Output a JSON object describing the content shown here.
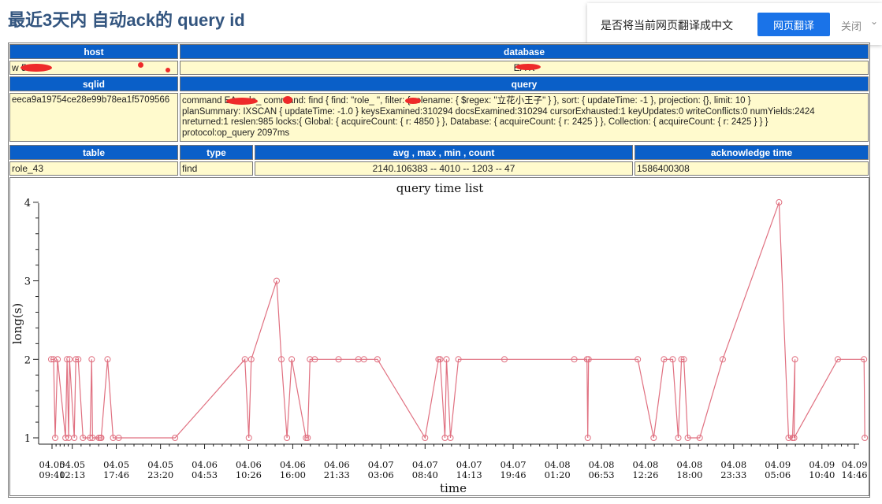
{
  "page": {
    "title": "最近3天内 自动ack的 query id"
  },
  "translate_bar": {
    "prompt": "是否将当前网页翻译成中文",
    "translate_button": "网页翻译",
    "close": "关闭",
    "chevron": "⌄"
  },
  "info_table": {
    "headers": {
      "host": "host",
      "database": "database",
      "sqlid": "sqlid",
      "query": "query",
      "table": "table",
      "type": "type",
      "stats": "avg , max , min , count",
      "ack_time": "acknowledge time"
    },
    "host": "w   5",
    "database": "EA   K",
    "sqlid": "eeca9a19754ce28e99b78ea1f5709566",
    "query_lines": [
      "command EA    .role_   command: find { find: \"role_   \", filter: { rolename: { $regex: \"立花小王子\" } }, sort: { updateTime: -1 }, projection: {}, limit: 10 }",
      "planSummary: IXSCAN { updateTime: -1.0 } keysExamined:310294 docsExamined:310294 cursorExhausted:1 keyUpdates:0 writeConflicts:0 numYields:2424",
      "nreturned:1 reslen:985 locks:{ Global: { acquireCount: { r: 4850 } }, Database: { acquireCount: { r: 2425 } }, Collection: { acquireCount: { r: 2425 } } }",
      "protocol:op_query 2097ms"
    ],
    "table": "role_43",
    "type": "find",
    "stats": "2140.106383 -- 4010 -- 1203 -- 47",
    "ack_time": "1586400308"
  },
  "chart_data": {
    "type": "line",
    "title": "query time list",
    "xlabel": "time",
    "ylabel": "long(s)",
    "ylim": [
      1,
      4
    ],
    "yticks": [
      1,
      2,
      3,
      4
    ],
    "xlim_hours": [
      0,
      101.5
    ],
    "xticks": [
      {
        "top": "04.05",
        "bottom": "09:40",
        "h": 0
      },
      {
        "top": "04.05",
        "bottom": "12:13",
        "h": 2.55
      },
      {
        "top": "04.05",
        "bottom": "17:46",
        "h": 8.1
      },
      {
        "top": "04.05",
        "bottom": "23:20",
        "h": 13.67
      },
      {
        "top": "04.06",
        "bottom": "04:53",
        "h": 19.22
      },
      {
        "top": "04.06",
        "bottom": "10:26",
        "h": 24.77
      },
      {
        "top": "04.06",
        "bottom": "16:00",
        "h": 30.33
      },
      {
        "top": "04.06",
        "bottom": "21:33",
        "h": 35.88
      },
      {
        "top": "04.07",
        "bottom": "03:06",
        "h": 41.43
      },
      {
        "top": "04.07",
        "bottom": "08:40",
        "h": 47.0
      },
      {
        "top": "04.07",
        "bottom": "14:13",
        "h": 52.55
      },
      {
        "top": "04.07",
        "bottom": "19:46",
        "h": 58.1
      },
      {
        "top": "04.08",
        "bottom": "01:20",
        "h": 63.67
      },
      {
        "top": "04.08",
        "bottom": "06:53",
        "h": 69.22
      },
      {
        "top": "04.08",
        "bottom": "12:26",
        "h": 74.77
      },
      {
        "top": "04.08",
        "bottom": "18:00",
        "h": 80.33
      },
      {
        "top": "04.08",
        "bottom": "23:33",
        "h": 85.88
      },
      {
        "top": "04.09",
        "bottom": "05:06",
        "h": 91.43
      },
      {
        "top": "04.09",
        "bottom": "10:40",
        "h": 97.0
      },
      {
        "top": "04.09",
        "bottom": "14:46",
        "h": 101.1
      }
    ],
    "series": [
      {
        "color": "#e07080",
        "points": [
          [
            -0.1,
            2
          ],
          [
            0.2,
            2
          ],
          [
            0.4,
            1
          ],
          [
            0.7,
            2
          ],
          [
            1.7,
            1
          ],
          [
            1.9,
            2
          ],
          [
            2.1,
            1
          ],
          [
            2.2,
            2
          ],
          [
            2.8,
            1
          ],
          [
            3.0,
            2
          ],
          [
            3.3,
            2
          ],
          [
            3.9,
            1
          ],
          [
            4.8,
            1
          ],
          [
            5.0,
            2
          ],
          [
            5.1,
            1
          ],
          [
            5.9,
            1
          ],
          [
            6.1,
            1
          ],
          [
            6.2,
            1
          ],
          [
            7.0,
            2
          ],
          [
            7.7,
            1
          ],
          [
            8.4,
            1
          ],
          [
            15.5,
            1
          ],
          [
            24.3,
            2
          ],
          [
            24.8,
            1
          ],
          [
            25.1,
            2
          ],
          [
            28.3,
            3
          ],
          [
            28.9,
            2
          ],
          [
            29.6,
            1
          ],
          [
            30.2,
            2
          ],
          [
            32.0,
            1
          ],
          [
            32.2,
            1
          ],
          [
            32.5,
            2
          ],
          [
            33.1,
            2
          ],
          [
            36.1,
            2
          ],
          [
            38.6,
            2
          ],
          [
            39.3,
            2
          ],
          [
            41.0,
            2
          ],
          [
            47.0,
            1
          ],
          [
            48.7,
            2
          ],
          [
            48.9,
            2
          ],
          [
            49.5,
            1
          ],
          [
            49.7,
            2
          ],
          [
            50.2,
            1
          ],
          [
            51.2,
            2
          ],
          [
            57.0,
            2
          ],
          [
            65.8,
            2
          ],
          [
            67.4,
            2
          ],
          [
            67.5,
            1
          ],
          [
            67.6,
            2
          ],
          [
            73.8,
            2
          ],
          [
            75.8,
            1
          ],
          [
            77.1,
            2
          ],
          [
            78.2,
            2
          ],
          [
            78.9,
            1
          ],
          [
            79.3,
            2
          ],
          [
            79.6,
            2
          ],
          [
            80.1,
            1
          ],
          [
            81.6,
            1
          ],
          [
            84.5,
            2
          ],
          [
            91.6,
            4
          ],
          [
            92.8,
            1
          ],
          [
            93.3,
            1
          ],
          [
            93.6,
            2
          ],
          [
            93.5,
            1
          ],
          [
            99.0,
            2
          ],
          [
            102.3,
            2
          ],
          [
            102.4,
            1
          ]
        ]
      }
    ]
  }
}
